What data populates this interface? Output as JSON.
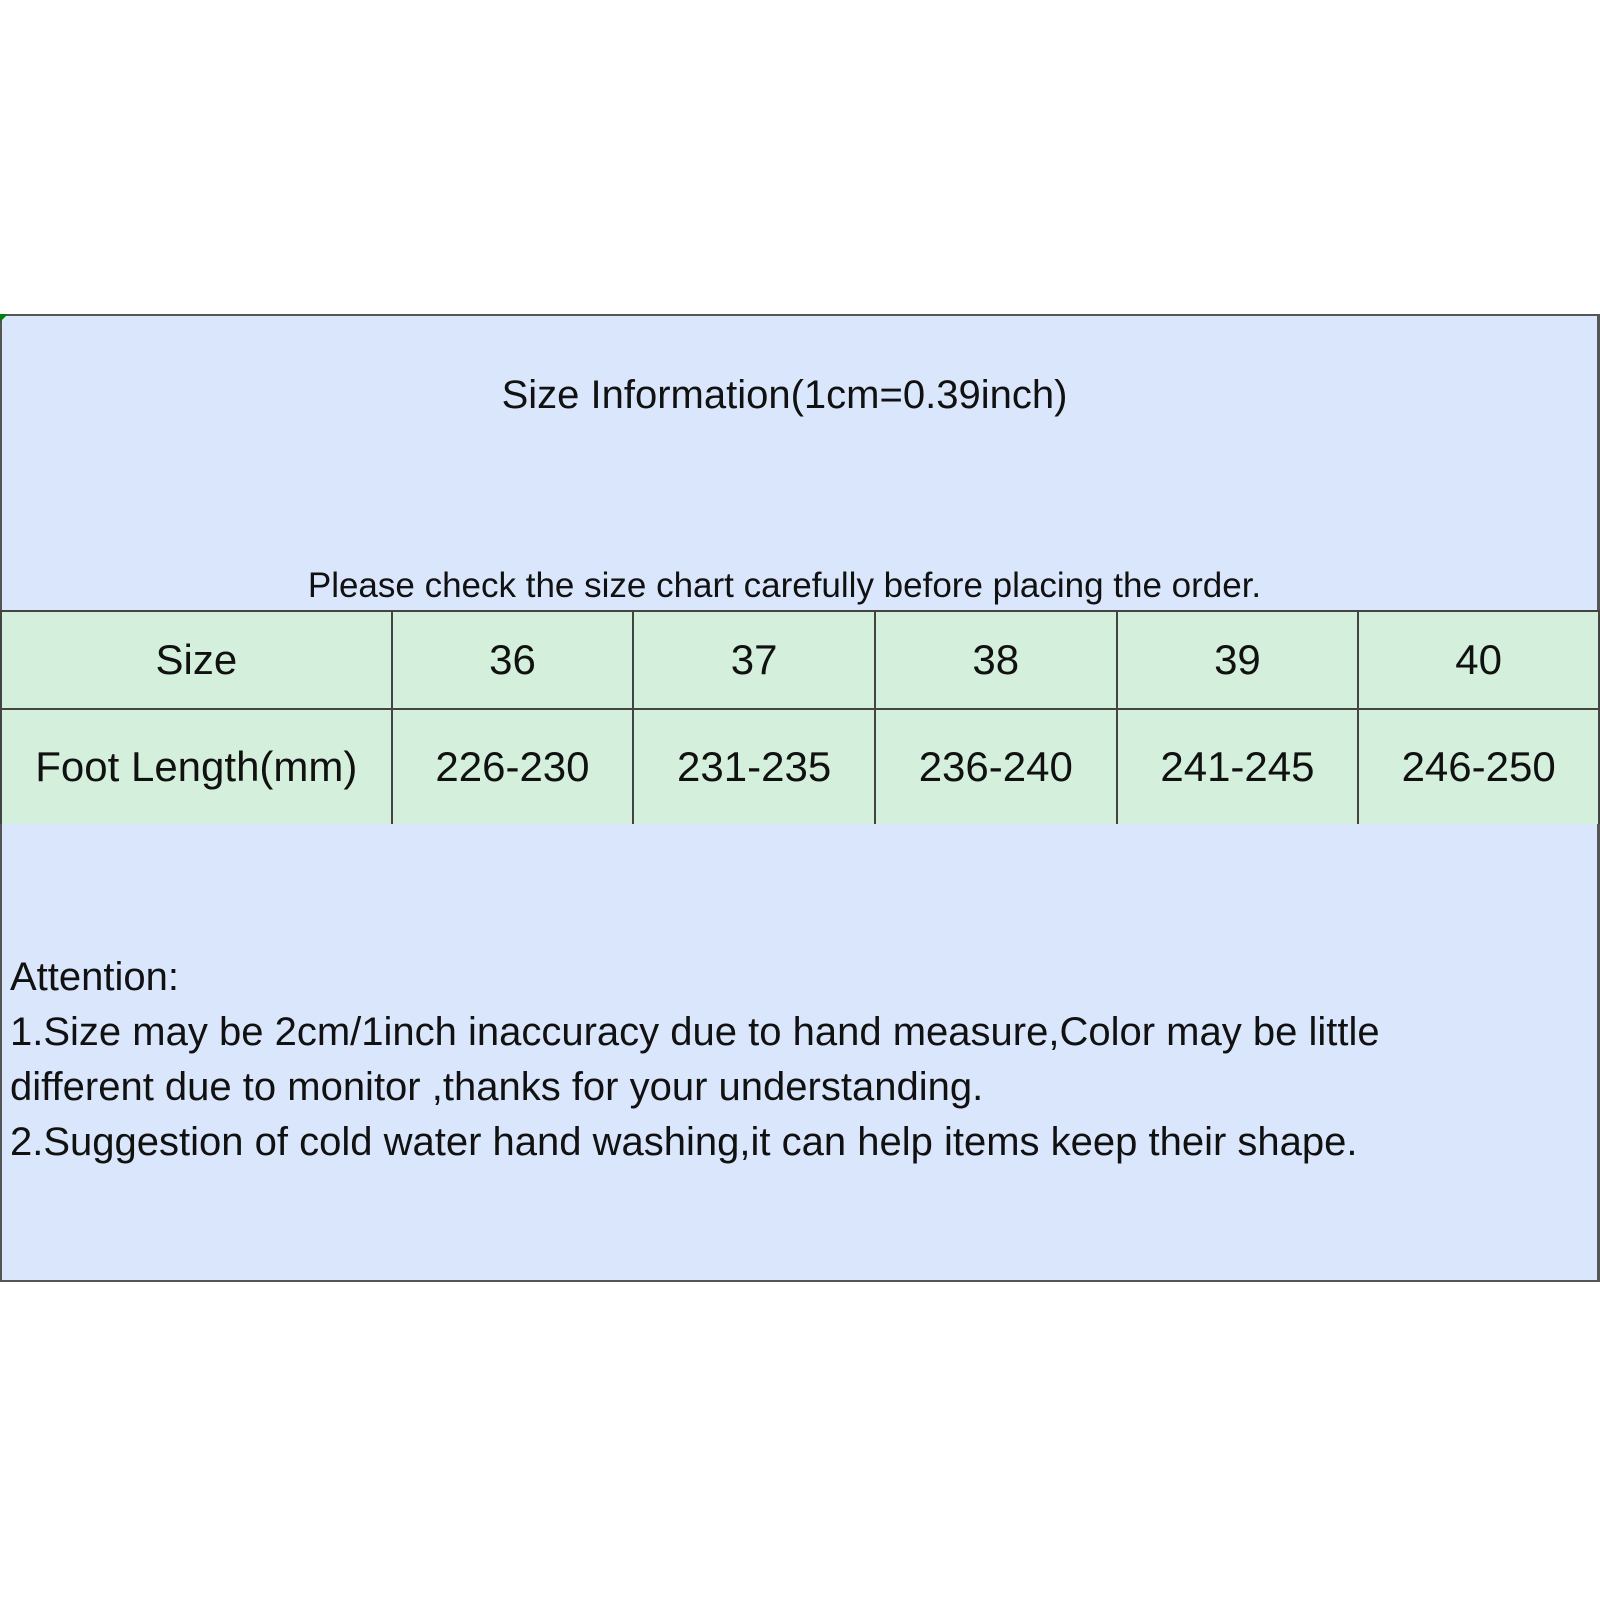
{
  "title": "Size Information(1cm=0.39inch)",
  "subtitle": "Please check the size chart carefully before placing the order.",
  "table": {
    "rows": [
      {
        "label": "Size",
        "values": [
          "36",
          "37",
          "38",
          "39",
          "40"
        ]
      },
      {
        "label": "Foot Length(mm)",
        "values": [
          "226-230",
          "231-235",
          "236-240",
          "241-245",
          "246-250"
        ]
      }
    ]
  },
  "attention": {
    "heading": "Attention:",
    "lines": [
      "1.Size may be 2cm/1inch inaccuracy due to hand measure,Color may be little",
      "different due to monitor ,thanks for your understanding.",
      "2.Suggestion of cold water hand washing,it can help items keep their shape."
    ]
  },
  "colors": {
    "header_bg": "#d9e6fb",
    "table_bg": "#d4f0dc",
    "border": "#444444"
  }
}
